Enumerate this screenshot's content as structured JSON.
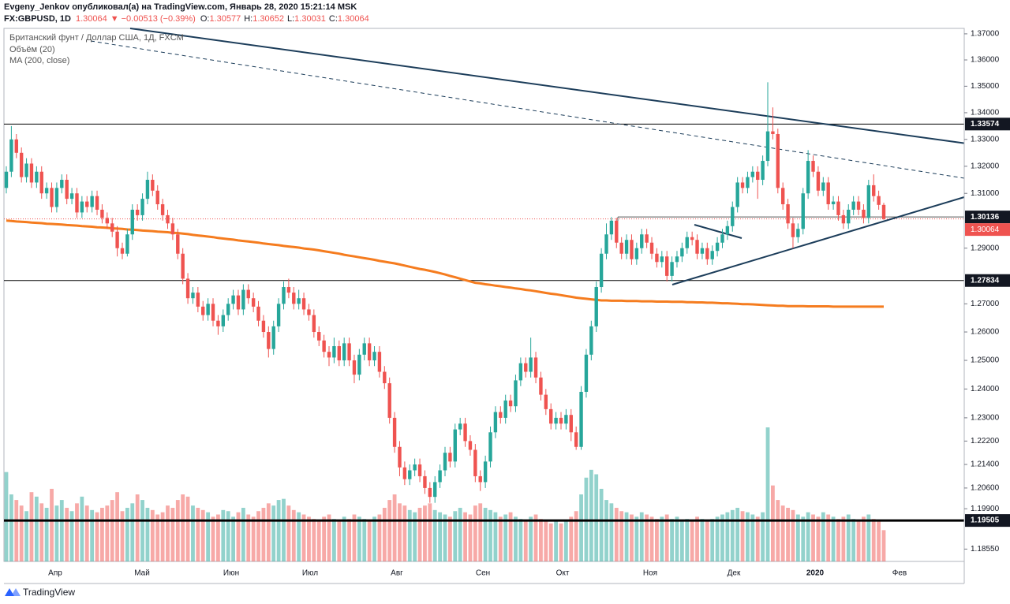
{
  "chart_data": {
    "type": "candlestick",
    "publisher": "Evgeny_Jenkov опубликовал(а) на TradingView.com, Январь 28, 2020 15:21:14 MSK",
    "symbol": "FX:GBPUSD, 1D",
    "last": 1.30064,
    "change": "−0.00513 (−0.39%)",
    "ohlc_header": [
      {
        "label": "O:",
        "value": 1.30577
      },
      {
        "label": "H:",
        "value": 1.30652
      },
      {
        "label": "L:",
        "value": 1.30031
      },
      {
        "label": "C:",
        "value": 1.30064
      }
    ],
    "title": "Британский фунт / Доллар США, 1Д, FXCM",
    "volume_name": "Объём (20)",
    "ma_name": "MA (200, close)",
    "brand": "TradingView",
    "up_color": "#26a69a",
    "down_color": "#ef5350",
    "ma_color": "#f57c1f",
    "log_scale": true,
    "ylim": [
      1.1814,
      1.3721
    ],
    "yticks": [
      {
        "value": 1.37,
        "label": "1.37000"
      },
      {
        "value": 1.36,
        "label": "1.36000"
      },
      {
        "value": 1.35,
        "label": "1.35000"
      },
      {
        "value": 1.34,
        "label": "1.34000"
      },
      {
        "value": 1.33,
        "label": "1.33000"
      },
      {
        "value": 1.32,
        "label": "1.32000"
      },
      {
        "value": 1.31,
        "label": "1.31000"
      },
      {
        "value": 1.29,
        "label": "1.29000"
      },
      {
        "value": 1.27,
        "label": "1.27000"
      },
      {
        "value": 1.26,
        "label": "1.26000"
      },
      {
        "value": 1.25,
        "label": "1.25000"
      },
      {
        "value": 1.24,
        "label": "1.24000"
      },
      {
        "value": 1.23,
        "label": "1.23000"
      },
      {
        "value": 1.222,
        "label": "1.22200"
      },
      {
        "value": 1.214,
        "label": "1.21400"
      },
      {
        "value": 1.206,
        "label": "1.20600"
      },
      {
        "value": 1.199,
        "label": "1.19900"
      },
      {
        "value": 1.1855,
        "label": "1.18550"
      }
    ],
    "months": [
      "Апр",
      "Май",
      "Июн",
      "Июл",
      "Авг",
      "Сен",
      "Окт",
      "Ноя",
      "Дек",
      "2020",
      "Фев"
    ],
    "levels": [
      1.33574,
      1.30136,
      1.27834,
      1.19505
    ],
    "ohlc": [
      [
        1.312,
        1.32,
        1.31,
        1.318
      ],
      [
        1.318,
        1.335,
        1.316,
        1.33
      ],
      [
        1.33,
        1.332,
        1.323,
        1.325
      ],
      [
        1.325,
        1.327,
        1.314,
        1.316
      ],
      [
        1.316,
        1.323,
        1.314,
        1.321
      ],
      [
        1.321,
        1.323,
        1.312,
        1.314
      ],
      [
        1.314,
        1.32,
        1.312,
        1.318
      ],
      [
        1.318,
        1.32,
        1.308,
        1.31
      ],
      [
        1.31,
        1.314,
        1.308,
        1.312
      ],
      [
        1.312,
        1.314,
        1.303,
        1.305
      ],
      [
        1.305,
        1.314,
        1.303,
        1.312
      ],
      [
        1.312,
        1.317,
        1.31,
        1.315
      ],
      [
        1.315,
        1.317,
        1.306,
        1.308
      ],
      [
        1.308,
        1.312,
        1.306,
        1.31
      ],
      [
        1.31,
        1.312,
        1.301,
        1.303
      ],
      [
        1.303,
        1.309,
        1.301,
        1.307
      ],
      [
        1.307,
        1.309,
        1.303,
        1.305
      ],
      [
        1.305,
        1.311,
        1.303,
        1.309
      ],
      [
        1.309,
        1.311,
        1.302,
        1.304
      ],
      [
        1.304,
        1.306,
        1.299,
        1.301
      ],
      [
        1.301,
        1.303,
        1.297,
        1.299
      ],
      [
        1.299,
        1.301,
        1.294,
        1.296
      ],
      [
        1.296,
        1.298,
        1.287,
        1.29
      ],
      [
        1.29,
        1.292,
        1.286,
        1.288
      ],
      [
        1.288,
        1.297,
        1.287,
        1.295
      ],
      [
        1.295,
        1.306,
        1.293,
        1.304
      ],
      [
        1.304,
        1.306,
        1.3,
        1.302
      ],
      [
        1.302,
        1.31,
        1.3,
        1.308
      ],
      [
        1.308,
        1.318,
        1.306,
        1.315
      ],
      [
        1.315,
        1.317,
        1.309,
        1.311
      ],
      [
        1.311,
        1.313,
        1.304,
        1.306
      ],
      [
        1.306,
        1.308,
        1.3,
        1.302
      ],
      [
        1.302,
        1.304,
        1.297,
        1.299
      ],
      [
        1.299,
        1.301,
        1.293,
        1.295
      ],
      [
        1.295,
        1.297,
        1.286,
        1.288
      ],
      [
        1.288,
        1.29,
        1.277,
        1.279
      ],
      [
        1.279,
        1.281,
        1.27,
        1.272
      ],
      [
        1.272,
        1.276,
        1.27,
        1.274
      ],
      [
        1.274,
        1.276,
        1.267,
        1.269
      ],
      [
        1.269,
        1.271,
        1.264,
        1.266
      ],
      [
        1.266,
        1.272,
        1.264,
        1.27
      ],
      [
        1.27,
        1.272,
        1.262,
        1.264
      ],
      [
        1.264,
        1.266,
        1.259,
        1.262
      ],
      [
        1.262,
        1.268,
        1.26,
        1.266
      ],
      [
        1.266,
        1.272,
        1.264,
        1.27
      ],
      [
        1.27,
        1.275,
        1.268,
        1.273
      ],
      [
        1.273,
        1.275,
        1.266,
        1.268
      ],
      [
        1.268,
        1.277,
        1.266,
        1.275
      ],
      [
        1.275,
        1.277,
        1.27,
        1.272
      ],
      [
        1.272,
        1.274,
        1.267,
        1.269
      ],
      [
        1.269,
        1.271,
        1.262,
        1.264
      ],
      [
        1.264,
        1.266,
        1.258,
        1.26
      ],
      [
        1.26,
        1.262,
        1.251,
        1.254
      ],
      [
        1.254,
        1.264,
        1.252,
        1.262
      ],
      [
        1.262,
        1.272,
        1.26,
        1.27
      ],
      [
        1.27,
        1.278,
        1.268,
        1.276
      ],
      [
        1.276,
        1.279,
        1.272,
        1.274
      ],
      [
        1.274,
        1.276,
        1.268,
        1.27
      ],
      [
        1.27,
        1.275,
        1.268,
        1.272
      ],
      [
        1.272,
        1.274,
        1.266,
        1.268
      ],
      [
        1.268,
        1.27,
        1.264,
        1.266
      ],
      [
        1.266,
        1.268,
        1.258,
        1.26
      ],
      [
        1.26,
        1.262,
        1.255,
        1.257
      ],
      [
        1.257,
        1.259,
        1.251,
        1.253
      ],
      [
        1.253,
        1.255,
        1.248,
        1.251
      ],
      [
        1.251,
        1.258,
        1.249,
        1.255
      ],
      [
        1.255,
        1.257,
        1.248,
        1.25
      ],
      [
        1.25,
        1.258,
        1.248,
        1.256
      ],
      [
        1.256,
        1.258,
        1.248,
        1.25
      ],
      [
        1.25,
        1.252,
        1.242,
        1.245
      ],
      [
        1.245,
        1.254,
        1.243,
        1.252
      ],
      [
        1.252,
        1.258,
        1.25,
        1.256
      ],
      [
        1.256,
        1.258,
        1.248,
        1.25
      ],
      [
        1.25,
        1.255,
        1.248,
        1.253
      ],
      [
        1.253,
        1.255,
        1.244,
        1.246
      ],
      [
        1.246,
        1.248,
        1.24,
        1.242
      ],
      [
        1.242,
        1.244,
        1.228,
        1.23
      ],
      [
        1.23,
        1.232,
        1.218,
        1.22
      ],
      [
        1.22,
        1.222,
        1.21,
        1.213
      ],
      [
        1.213,
        1.215,
        1.207,
        1.209
      ],
      [
        1.209,
        1.214,
        1.207,
        1.212
      ],
      [
        1.212,
        1.216,
        1.21,
        1.214
      ],
      [
        1.214,
        1.216,
        1.208,
        1.21
      ],
      [
        1.21,
        1.212,
        1.204,
        1.206
      ],
      [
        1.206,
        1.208,
        1.201,
        1.203
      ],
      [
        1.203,
        1.21,
        1.201,
        1.208
      ],
      [
        1.208,
        1.214,
        1.206,
        1.212
      ],
      [
        1.212,
        1.22,
        1.21,
        1.218
      ],
      [
        1.218,
        1.22,
        1.213,
        1.215
      ],
      [
        1.215,
        1.228,
        1.213,
        1.226
      ],
      [
        1.226,
        1.23,
        1.224,
        1.228
      ],
      [
        1.228,
        1.23,
        1.22,
        1.222
      ],
      [
        1.222,
        1.224,
        1.217,
        1.219
      ],
      [
        1.219,
        1.221,
        1.208,
        1.21
      ],
      [
        1.21,
        1.212,
        1.205,
        1.208
      ],
      [
        1.208,
        1.217,
        1.206,
        1.215
      ],
      [
        1.215,
        1.227,
        1.213,
        1.225
      ],
      [
        1.225,
        1.234,
        1.223,
        1.232
      ],
      [
        1.232,
        1.234,
        1.228,
        1.23
      ],
      [
        1.23,
        1.238,
        1.228,
        1.236
      ],
      [
        1.236,
        1.238,
        1.232,
        1.234
      ],
      [
        1.234,
        1.245,
        1.232,
        1.243
      ],
      [
        1.243,
        1.251,
        1.241,
        1.249
      ],
      [
        1.249,
        1.251,
        1.244,
        1.246
      ],
      [
        1.246,
        1.258,
        1.244,
        1.251
      ],
      [
        1.251,
        1.253,
        1.242,
        1.244
      ],
      [
        1.244,
        1.246,
        1.236,
        1.238
      ],
      [
        1.238,
        1.24,
        1.231,
        1.233
      ],
      [
        1.233,
        1.235,
        1.226,
        1.228
      ],
      [
        1.228,
        1.232,
        1.226,
        1.23
      ],
      [
        1.23,
        1.232,
        1.226,
        1.228
      ],
      [
        1.228,
        1.233,
        1.226,
        1.231
      ],
      [
        1.231,
        1.233,
        1.222,
        1.225
      ],
      [
        1.225,
        1.227,
        1.219,
        1.22
      ],
      [
        1.22,
        1.241,
        1.219,
        1.239
      ],
      [
        1.239,
        1.254,
        1.237,
        1.252
      ],
      [
        1.252,
        1.264,
        1.25,
        1.262
      ],
      [
        1.262,
        1.278,
        1.26,
        1.276
      ],
      [
        1.276,
        1.29,
        1.274,
        1.288
      ],
      [
        1.288,
        1.299,
        1.286,
        1.295
      ],
      [
        1.295,
        1.3013,
        1.293,
        1.3
      ],
      [
        1.3,
        1.301,
        1.29,
        1.292
      ],
      [
        1.292,
        1.294,
        1.286,
        1.288
      ],
      [
        1.288,
        1.295,
        1.286,
        1.293
      ],
      [
        1.293,
        1.295,
        1.284,
        1.286
      ],
      [
        1.286,
        1.292,
        1.284,
        1.29
      ],
      [
        1.29,
        1.297,
        1.288,
        1.295
      ],
      [
        1.295,
        1.297,
        1.29,
        1.292
      ],
      [
        1.292,
        1.294,
        1.286,
        1.288
      ],
      [
        1.288,
        1.29,
        1.283,
        1.285
      ],
      [
        1.285,
        1.289,
        1.283,
        1.287
      ],
      [
        1.287,
        1.289,
        1.278,
        1.28
      ],
      [
        1.28,
        1.287,
        1.278,
        1.285
      ],
      [
        1.285,
        1.289,
        1.283,
        1.287
      ],
      [
        1.287,
        1.292,
        1.285,
        1.29
      ],
      [
        1.29,
        1.296,
        1.288,
        1.294
      ],
      [
        1.294,
        1.296,
        1.291,
        1.293
      ],
      [
        1.293,
        1.295,
        1.286,
        1.288
      ],
      [
        1.288,
        1.292,
        1.286,
        1.29
      ],
      [
        1.29,
        1.292,
        1.284,
        1.286
      ],
      [
        1.286,
        1.291,
        1.284,
        1.289
      ],
      [
        1.289,
        1.294,
        1.287,
        1.292
      ],
      [
        1.292,
        1.297,
        1.29,
        1.295
      ],
      [
        1.295,
        1.3,
        1.293,
        1.298
      ],
      [
        1.298,
        1.307,
        1.296,
        1.305
      ],
      [
        1.305,
        1.316,
        1.303,
        1.314
      ],
      [
        1.314,
        1.316,
        1.31,
        1.312
      ],
      [
        1.312,
        1.318,
        1.31,
        1.316
      ],
      [
        1.316,
        1.32,
        1.314,
        1.318
      ],
      [
        1.318,
        1.32,
        1.308,
        1.315
      ],
      [
        1.315,
        1.324,
        1.313,
        1.322
      ],
      [
        1.322,
        1.3515,
        1.32,
        1.333
      ],
      [
        1.333,
        1.342,
        1.33,
        1.332
      ],
      [
        1.332,
        1.334,
        1.31,
        1.312
      ],
      [
        1.312,
        1.314,
        1.304,
        1.306
      ],
      [
        1.306,
        1.308,
        1.297,
        1.299
      ],
      [
        1.299,
        1.301,
        1.29,
        1.294
      ],
      [
        1.294,
        1.299,
        1.292,
        1.297
      ],
      [
        1.297,
        1.312,
        1.295,
        1.31
      ],
      [
        1.31,
        1.326,
        1.308,
        1.322
      ],
      [
        1.322,
        1.324,
        1.316,
        1.318
      ],
      [
        1.318,
        1.32,
        1.309,
        1.311
      ],
      [
        1.311,
        1.316,
        1.309,
        1.314
      ],
      [
        1.314,
        1.316,
        1.304,
        1.306
      ],
      [
        1.306,
        1.309,
        1.304,
        1.307
      ],
      [
        1.307,
        1.309,
        1.3,
        1.302
      ],
      [
        1.302,
        1.304,
        1.297,
        1.299
      ],
      [
        1.299,
        1.306,
        1.297,
        1.304
      ],
      [
        1.304,
        1.309,
        1.302,
        1.307
      ],
      [
        1.307,
        1.309,
        1.302,
        1.304
      ],
      [
        1.304,
        1.306,
        1.299,
        1.301
      ],
      [
        1.301,
        1.315,
        1.299,
        1.313
      ],
      [
        1.313,
        1.317,
        1.307,
        1.309
      ],
      [
        1.309,
        1.311,
        1.304,
        1.30577
      ],
      [
        1.30577,
        1.30652,
        1.30031,
        1.30064
      ]
    ],
    "volume": [
      80,
      60,
      55,
      50,
      45,
      62,
      58,
      52,
      48,
      65,
      50,
      55,
      48,
      45,
      52,
      58,
      50,
      46,
      44,
      48,
      50,
      55,
      62,
      45,
      48,
      52,
      60,
      55,
      48,
      46,
      42,
      44,
      50,
      48,
      55,
      60,
      58,
      50,
      48,
      46,
      44,
      40,
      42,
      46,
      45,
      40,
      44,
      48,
      42,
      40,
      45,
      48,
      52,
      50,
      55,
      56,
      50,
      46,
      44,
      42,
      40,
      38,
      36,
      40,
      42,
      38,
      36,
      40,
      38,
      42,
      40,
      38,
      36,
      40,
      42,
      48,
      55,
      60,
      52,
      50,
      46,
      44,
      48,
      50,
      52,
      46,
      44,
      42,
      40,
      45,
      48,
      44,
      42,
      50,
      52,
      48,
      46,
      44,
      40,
      42,
      44,
      40,
      38,
      36,
      40,
      42,
      38,
      36,
      34,
      36,
      34,
      36,
      40,
      45,
      60,
      75,
      82,
      78,
      65,
      55,
      52,
      48,
      45,
      44,
      42,
      40,
      44,
      42,
      40,
      38,
      40,
      42,
      38,
      40,
      36,
      38,
      36,
      40,
      38,
      36,
      38,
      40,
      42,
      44,
      46,
      48,
      45,
      44,
      42,
      40,
      44,
      120,
      68,
      55,
      50,
      48,
      46,
      42,
      40,
      44,
      42,
      40,
      44,
      42,
      40,
      38,
      40,
      42,
      38,
      36,
      40,
      42,
      38,
      36,
      28
    ],
    "ma": [
      1.3,
      1.2999,
      1.2997,
      1.2996,
      1.2995,
      1.2993,
      1.2992,
      1.2991,
      1.2989,
      1.2988,
      1.2987,
      1.2986,
      1.2984,
      1.2983,
      1.2982,
      1.298,
      1.2979,
      1.2978,
      1.2976,
      1.2975,
      1.2974,
      1.2972,
      1.2971,
      1.297,
      1.2968,
      1.2967,
      1.2966,
      1.2964,
      1.2963,
      1.2962,
      1.296,
      1.2959,
      1.2958,
      1.2956,
      1.2955,
      1.2953,
      1.2951,
      1.2948,
      1.2946,
      1.2944,
      1.2942,
      1.294,
      1.2937,
      1.2935,
      1.2933,
      1.2931,
      1.2928,
      1.2926,
      1.2924,
      1.2922,
      1.292,
      1.2917,
      1.2915,
      1.2913,
      1.2911,
      1.2908,
      1.2906,
      1.2904,
      1.2902,
      1.2899,
      1.2897,
      1.2895,
      1.2892,
      1.2889,
      1.2886,
      1.2883,
      1.288,
      1.2876,
      1.2873,
      1.287,
      1.2867,
      1.2864,
      1.2861,
      1.2858,
      1.2854,
      1.2851,
      1.2848,
      1.2845,
      1.2841,
      1.2837,
      1.2833,
      1.2829,
      1.2825,
      1.2822,
      1.2818,
      1.2814,
      1.281,
      1.2805,
      1.28,
      1.2795,
      1.279,
      1.2785,
      1.278,
      1.2775,
      1.2773,
      1.277,
      1.2768,
      1.2765,
      1.2763,
      1.276,
      1.2758,
      1.2755,
      1.2753,
      1.275,
      1.2748,
      1.2745,
      1.2742,
      1.2739,
      1.2736,
      1.2734,
      1.2731,
      1.2728,
      1.2725,
      1.2722,
      1.272,
      1.2718,
      1.2716,
      1.2714,
      1.2712,
      1.2712,
      1.2711,
      1.2711,
      1.2711,
      1.271,
      1.271,
      1.271,
      1.2709,
      1.2709,
      1.2709,
      1.2708,
      1.2708,
      1.2708,
      1.2707,
      1.2707,
      1.2707,
      1.2706,
      1.2706,
      1.2705,
      1.2705,
      1.2704,
      1.2704,
      1.2703,
      1.2702,
      1.2702,
      1.2701,
      1.27,
      1.2699,
      1.2699,
      1.2698,
      1.2697,
      1.2696,
      1.2695,
      1.2694,
      1.2693,
      1.2693,
      1.2692,
      1.2692,
      1.2692,
      1.2692,
      1.2691,
      1.2691,
      1.2691,
      1.2691,
      1.2691,
      1.269,
      1.269,
      1.269,
      1.269,
      1.269,
      1.269,
      1.269,
      1.269,
      1.269,
      1.269,
      1.269
    ]
  }
}
